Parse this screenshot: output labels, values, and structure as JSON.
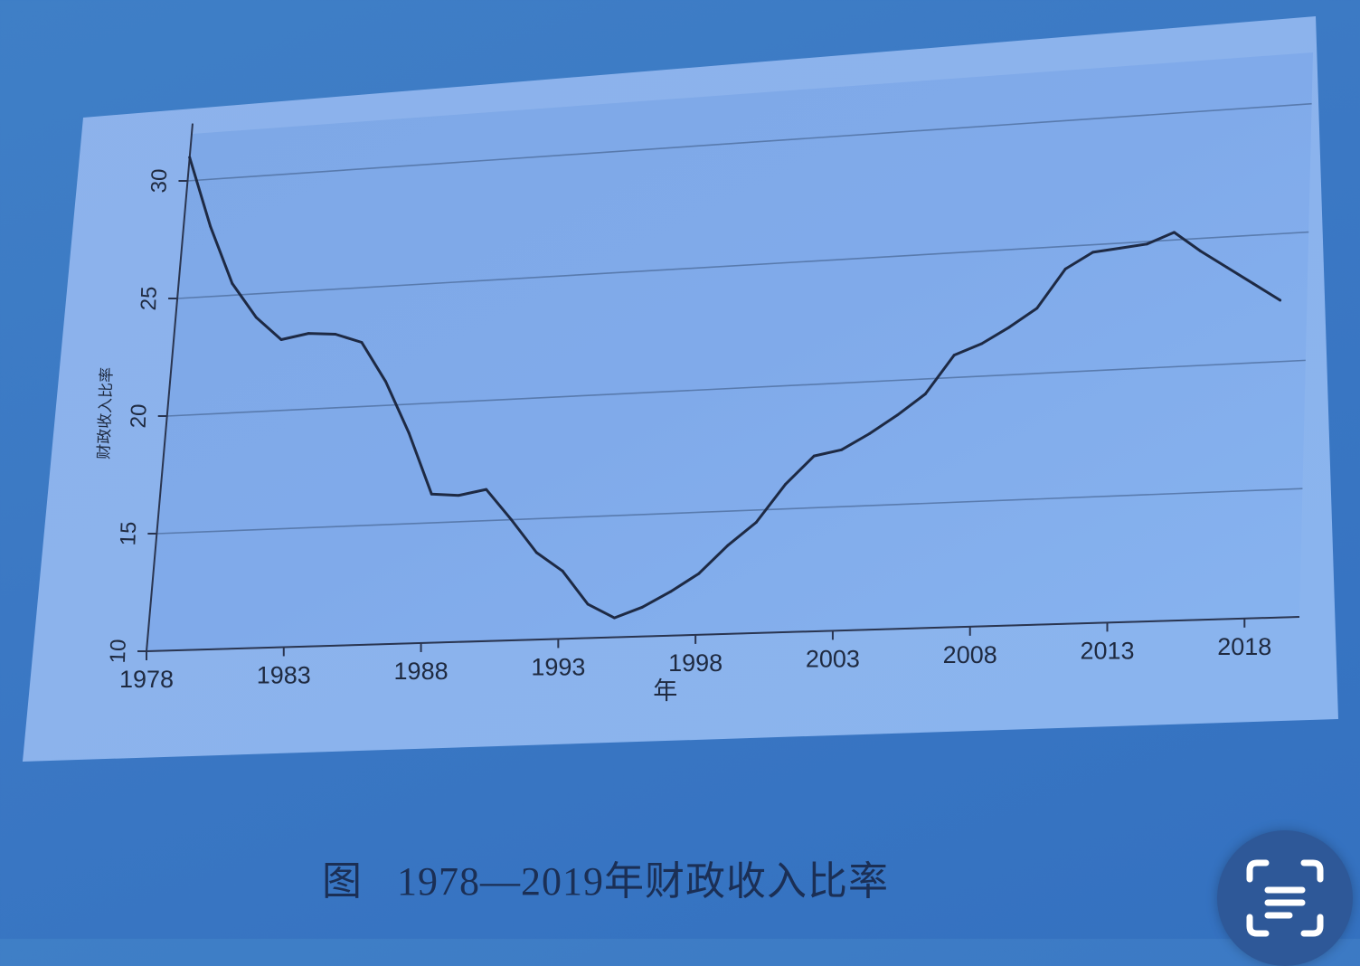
{
  "chart_data": {
    "type": "line",
    "title": "",
    "xlabel": "年",
    "ylabel": "财政收入比率",
    "xlim": [
      1978,
      2020
    ],
    "ylim": [
      10,
      32
    ],
    "x_ticks": [
      1978,
      1983,
      1988,
      1993,
      1998,
      2003,
      2008,
      2013,
      2018
    ],
    "y_ticks": [
      10,
      15,
      20,
      25,
      30
    ],
    "grid": true,
    "legend": "none",
    "line_color": "#1e2a44",
    "x": [
      1978,
      1979,
      1980,
      1981,
      1982,
      1983,
      1984,
      1985,
      1986,
      1987,
      1988,
      1989,
      1990,
      1991,
      1992,
      1993,
      1994,
      1995,
      1996,
      1997,
      1998,
      1999,
      2000,
      2001,
      2002,
      2003,
      2004,
      2005,
      2006,
      2007,
      2008,
      2009,
      2010,
      2011,
      2012,
      2013,
      2014,
      2015,
      2016,
      2017,
      2018,
      2019
    ],
    "series": [
      {
        "values": [
          31.0,
          28.0,
          25.5,
          24.0,
          23.0,
          23.2,
          23.1,
          22.7,
          21.0,
          18.8,
          16.2,
          16.1,
          16.3,
          15.0,
          13.6,
          12.8,
          11.4,
          10.8,
          11.2,
          11.8,
          12.5,
          13.6,
          14.5,
          16.0,
          17.1,
          17.3,
          17.9,
          18.6,
          19.4,
          20.9,
          21.3,
          21.9,
          22.6,
          24.1,
          24.7,
          24.8,
          24.9,
          25.3,
          24.5,
          23.8,
          23.1,
          22.4
        ]
      }
    ]
  },
  "caption": {
    "label": "图",
    "text": "1978—2019年财政收入比率"
  },
  "scan_button": {
    "icon": "scan-text-icon",
    "color": "#2e5898"
  }
}
